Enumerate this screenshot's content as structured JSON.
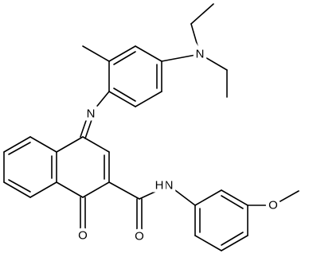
{
  "atoms": {
    "amine_nitrogen": "N",
    "imine_nitrogen": "N",
    "ketone_oxygen": "O",
    "amide_oxygen": "O",
    "amide_nitrogen": "N",
    "amide_hydrogen": "H",
    "ether_oxygen": "O"
  }
}
